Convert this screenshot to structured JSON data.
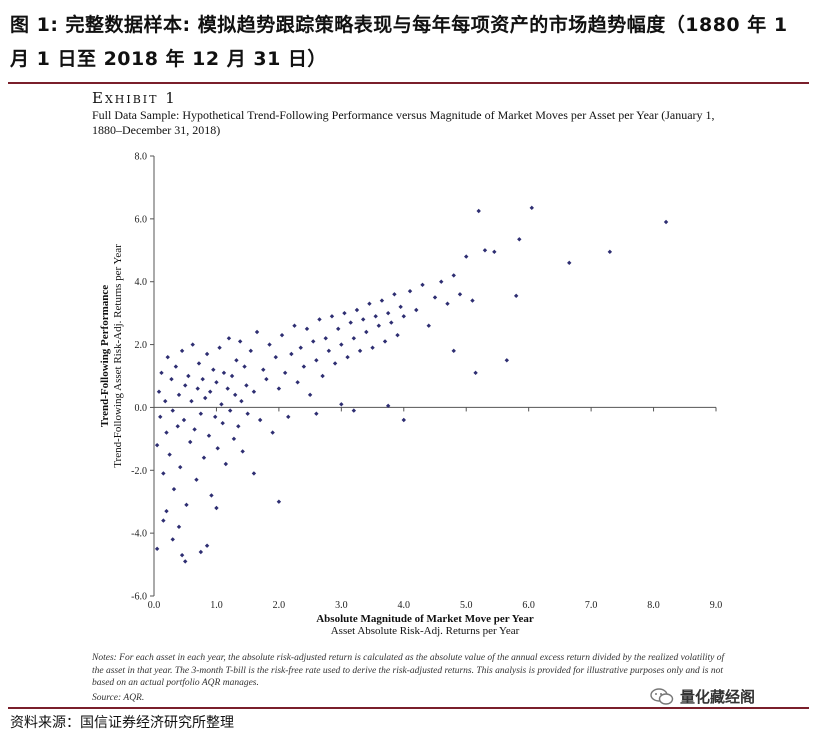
{
  "header": {
    "title": "图 1: 完整数据样本: 模拟趋势跟踪策略表现与每年每项资产的市场趋势幅度（1880 年 1 月 1 日至 2018 年 12 月 31 日）"
  },
  "exhibit": {
    "label": "Exhibit 1",
    "title": "Full Data Sample: Hypothetical Trend-Following Performance versus Magnitude of Market Moves per Asset per Year (January 1, 1880–December 31, 2018)"
  },
  "notes": {
    "text": "Notes: For each asset in each year, the absolute risk-adjusted return is calculated as the absolute value of the annual excess return divided by the realized volatility of the asset in that year. The 3-month T-bill is the risk-free rate used to derive the risk-adjusted returns. This analysis is provided for illustrative purposes only and is not based on an actual portfolio AQR manages.",
    "source": "Source: AQR."
  },
  "footer": {
    "source": "资料来源：国信证券经济研究所整理",
    "watermark": "量化藏经阁"
  },
  "colors": {
    "marker": "#2e2e72",
    "rule": "#7a1f2b",
    "axis": "#555555"
  },
  "chart_data": {
    "type": "scatter",
    "xlabel": "Absolute Magnitude of Market Move per Year",
    "xlabel_sub": "Asset Absolute Risk-Adj. Returns per Year",
    "ylabel": "Trend-Following Performance",
    "ylabel_sub": "Trend-Following Asset Risk-Adj. Returns per Year",
    "xlim": [
      0,
      9
    ],
    "ylim": [
      -6,
      8
    ],
    "xticks": [
      "0.0",
      "1.0",
      "2.0",
      "3.0",
      "4.0",
      "5.0",
      "6.0",
      "7.0",
      "8.0",
      "9.0"
    ],
    "yticks": [
      "-6.0",
      "-4.0",
      "-2.0",
      "0.0",
      "2.0",
      "4.0",
      "6.0",
      "8.0"
    ],
    "grid": false,
    "points": [
      [
        0.05,
        -1.2
      ],
      [
        0.08,
        0.5
      ],
      [
        0.1,
        -0.3
      ],
      [
        0.12,
        1.1
      ],
      [
        0.15,
        -2.1
      ],
      [
        0.18,
        0.2
      ],
      [
        0.2,
        -0.8
      ],
      [
        0.22,
        1.6
      ],
      [
        0.25,
        -1.5
      ],
      [
        0.28,
        0.9
      ],
      [
        0.3,
        -0.1
      ],
      [
        0.32,
        -2.6
      ],
      [
        0.35,
        1.3
      ],
      [
        0.38,
        -0.6
      ],
      [
        0.4,
        0.4
      ],
      [
        0.42,
        -1.9
      ],
      [
        0.45,
        1.8
      ],
      [
        0.48,
        -0.4
      ],
      [
        0.5,
        0.7
      ],
      [
        0.52,
        -3.1
      ],
      [
        0.55,
        1.0
      ],
      [
        0.58,
        -1.1
      ],
      [
        0.6,
        0.2
      ],
      [
        0.62,
        2.0
      ],
      [
        0.65,
        -0.7
      ],
      [
        0.68,
        -2.3
      ],
      [
        0.7,
        0.6
      ],
      [
        0.72,
        1.4
      ],
      [
        0.75,
        -0.2
      ],
      [
        0.78,
        0.9
      ],
      [
        0.8,
        -1.6
      ],
      [
        0.82,
        0.3
      ],
      [
        0.85,
        1.7
      ],
      [
        0.88,
        -0.9
      ],
      [
        0.9,
        0.5
      ],
      [
        0.92,
        -2.8
      ],
      [
        0.95,
        1.2
      ],
      [
        0.98,
        -0.3
      ],
      [
        1.0,
        0.8
      ],
      [
        1.02,
        -1.3
      ],
      [
        1.05,
        1.9
      ],
      [
        1.08,
        0.1
      ],
      [
        1.1,
        -0.5
      ],
      [
        1.12,
        1.1
      ],
      [
        1.15,
        -1.8
      ],
      [
        1.18,
        0.6
      ],
      [
        1.2,
        2.2
      ],
      [
        1.22,
        -0.1
      ],
      [
        1.25,
        1.0
      ],
      [
        1.28,
        -1.0
      ],
      [
        1.3,
        0.4
      ],
      [
        1.32,
        1.5
      ],
      [
        1.35,
        -0.6
      ],
      [
        1.38,
        2.1
      ],
      [
        1.4,
        0.2
      ],
      [
        1.42,
        -1.4
      ],
      [
        1.45,
        1.3
      ],
      [
        1.48,
        0.7
      ],
      [
        1.5,
        -0.2
      ],
      [
        1.55,
        1.8
      ],
      [
        1.6,
        0.5
      ],
      [
        1.65,
        2.4
      ],
      [
        1.7,
        -0.4
      ],
      [
        1.75,
        1.2
      ],
      [
        1.8,
        0.9
      ],
      [
        1.85,
        2.0
      ],
      [
        1.9,
        -0.8
      ],
      [
        1.95,
        1.6
      ],
      [
        2.0,
        0.6
      ],
      [
        2.05,
        2.3
      ],
      [
        2.1,
        1.1
      ],
      [
        2.15,
        -0.3
      ],
      [
        2.2,
        1.7
      ],
      [
        2.25,
        2.6
      ],
      [
        2.3,
        0.8
      ],
      [
        2.35,
        1.9
      ],
      [
        2.4,
        1.3
      ],
      [
        2.45,
        2.5
      ],
      [
        2.5,
        0.4
      ],
      [
        2.55,
        2.1
      ],
      [
        2.6,
        1.5
      ],
      [
        2.65,
        2.8
      ],
      [
        2.7,
        1.0
      ],
      [
        2.75,
        2.2
      ],
      [
        2.8,
        1.8
      ],
      [
        2.85,
        2.9
      ],
      [
        2.9,
        1.4
      ],
      [
        2.95,
        2.5
      ],
      [
        3.0,
        2.0
      ],
      [
        3.05,
        3.0
      ],
      [
        3.1,
        1.6
      ],
      [
        3.15,
        2.7
      ],
      [
        3.2,
        2.2
      ],
      [
        3.25,
        3.1
      ],
      [
        3.3,
        1.8
      ],
      [
        3.35,
        2.8
      ],
      [
        3.4,
        2.4
      ],
      [
        3.45,
        3.3
      ],
      [
        3.5,
        1.9
      ],
      [
        3.55,
        2.9
      ],
      [
        3.6,
        2.6
      ],
      [
        3.65,
        3.4
      ],
      [
        3.7,
        2.1
      ],
      [
        3.75,
        3.0
      ],
      [
        3.8,
        2.7
      ],
      [
        3.85,
        3.6
      ],
      [
        3.9,
        2.3
      ],
      [
        3.95,
        3.2
      ],
      [
        4.0,
        2.9
      ],
      [
        4.1,
        3.7
      ],
      [
        4.2,
        3.1
      ],
      [
        4.3,
        3.9
      ],
      [
        4.4,
        2.6
      ],
      [
        4.5,
        3.5
      ],
      [
        4.6,
        4.0
      ],
      [
        4.7,
        3.3
      ],
      [
        4.8,
        4.2
      ],
      [
        4.9,
        3.6
      ],
      [
        5.0,
        4.8
      ],
      [
        5.1,
        3.4
      ],
      [
        5.2,
        6.25
      ],
      [
        5.3,
        5.0
      ],
      [
        5.45,
        4.95
      ],
      [
        5.65,
        1.5
      ],
      [
        5.8,
        3.55
      ],
      [
        5.85,
        5.35
      ],
      [
        6.05,
        6.35
      ],
      [
        6.65,
        4.6
      ],
      [
        7.3,
        4.95
      ],
      [
        8.2,
        5.9
      ],
      [
        0.05,
        -4.5
      ],
      [
        0.15,
        -3.6
      ],
      [
        0.3,
        -4.2
      ],
      [
        0.45,
        -4.7
      ],
      [
        0.5,
        -4.9
      ],
      [
        0.75,
        -4.6
      ],
      [
        0.85,
        -4.4
      ],
      [
        1.0,
        -3.2
      ],
      [
        1.6,
        -2.1
      ],
      [
        2.0,
        -3.0
      ],
      [
        0.4,
        -3.8
      ],
      [
        0.2,
        -3.3
      ],
      [
        3.0,
        0.1
      ],
      [
        3.75,
        0.05
      ],
      [
        4.0,
        -0.4
      ],
      [
        4.8,
        1.8
      ],
      [
        5.15,
        1.1
      ],
      [
        3.2,
        -0.1
      ],
      [
        2.6,
        -0.2
      ]
    ]
  }
}
